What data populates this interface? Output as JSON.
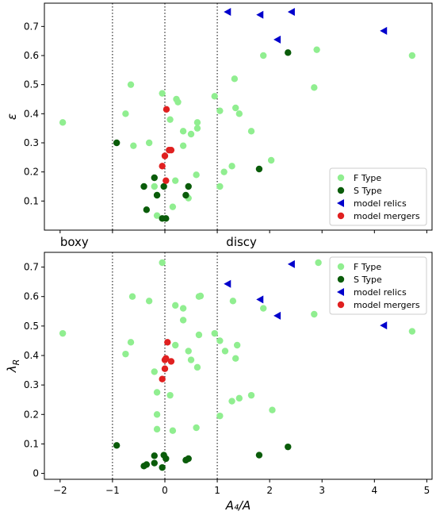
{
  "chart_data": [
    {
      "type": "scatter",
      "ylabel": "ε",
      "xlim": [
        -2.3,
        5.1
      ],
      "ylim": [
        0.0,
        0.78
      ],
      "yticks": [
        0.1,
        0.2,
        0.3,
        0.4,
        0.5,
        0.6,
        0.7
      ],
      "vlines": [
        -1,
        0,
        1
      ],
      "legend_position": "bottom-right",
      "annotations": [
        "boxy",
        "discy"
      ],
      "series": [
        {
          "name": "F Type",
          "color": "#90ee90",
          "marker": "circle",
          "points": [
            [
              -1.95,
              0.37
            ],
            [
              -0.65,
              0.5
            ],
            [
              -0.75,
              0.4
            ],
            [
              -0.6,
              0.29
            ],
            [
              -0.3,
              0.3
            ],
            [
              -0.05,
              0.47
            ],
            [
              0.1,
              0.38
            ],
            [
              0.25,
              0.44
            ],
            [
              0.22,
              0.45
            ],
            [
              0.35,
              0.34
            ],
            [
              0.5,
              0.33
            ],
            [
              0.62,
              0.35
            ],
            [
              0.62,
              0.37
            ],
            [
              0.95,
              0.46
            ],
            [
              1.05,
              0.41
            ],
            [
              0.35,
              0.29
            ],
            [
              0.2,
              0.17
            ],
            [
              0.6,
              0.19
            ],
            [
              0.45,
              0.11
            ],
            [
              0.15,
              0.08
            ],
            [
              -0.15,
              0.05
            ],
            [
              -0.2,
              0.15
            ],
            [
              -0.15,
              0.12
            ],
            [
              1.33,
              0.52
            ],
            [
              1.35,
              0.42
            ],
            [
              1.42,
              0.4
            ],
            [
              1.65,
              0.34
            ],
            [
              1.88,
              0.6
            ],
            [
              2.9,
              0.62
            ],
            [
              2.85,
              0.49
            ],
            [
              4.72,
              0.6
            ],
            [
              2.03,
              0.24
            ],
            [
              1.13,
              0.2
            ],
            [
              1.28,
              0.22
            ],
            [
              1.05,
              0.15
            ]
          ]
        },
        {
          "name": "S Type",
          "color": "#0a5c0a",
          "marker": "circle",
          "points": [
            [
              -0.92,
              0.3
            ],
            [
              -0.2,
              0.18
            ],
            [
              -0.4,
              0.15
            ],
            [
              -0.35,
              0.07
            ],
            [
              -0.15,
              0.12
            ],
            [
              -0.02,
              0.15
            ],
            [
              -0.05,
              0.04
            ],
            [
              0.02,
              0.04
            ],
            [
              0.45,
              0.15
            ],
            [
              0.4,
              0.12
            ],
            [
              1.8,
              0.21
            ],
            [
              2.35,
              0.61
            ]
          ]
        },
        {
          "name": "model relics",
          "color": "#0000cc",
          "marker": "triangle-left",
          "points": [
            [
              1.2,
              0.75
            ],
            [
              1.82,
              0.74
            ],
            [
              2.42,
              0.75
            ],
            [
              2.15,
              0.655
            ],
            [
              4.18,
              0.685
            ]
          ]
        },
        {
          "name": "model mergers",
          "color": "#e02020",
          "marker": "circle",
          "points": [
            [
              0.03,
              0.415
            ],
            [
              0.08,
              0.275
            ],
            [
              0.12,
              0.275
            ],
            [
              0.0,
              0.255
            ],
            [
              -0.05,
              0.22
            ],
            [
              0.02,
              0.17
            ]
          ]
        }
      ]
    },
    {
      "type": "scatter",
      "xlabel": "A₄/A",
      "ylabel": "λ",
      "ylabel_sub": "R",
      "xlim": [
        -2.3,
        5.1
      ],
      "ylim": [
        -0.02,
        0.75
      ],
      "xticks": [
        -2,
        -1,
        0,
        1,
        2,
        3,
        4,
        5
      ],
      "yticks": [
        0.0,
        0.1,
        0.2,
        0.3,
        0.4,
        0.5,
        0.6,
        0.7
      ],
      "vlines": [
        -1,
        0,
        1
      ],
      "legend_position": "top-right",
      "series": [
        {
          "name": "F Type",
          "color": "#90ee90",
          "marker": "circle",
          "points": [
            [
              -1.95,
              0.475
            ],
            [
              -0.62,
              0.6
            ],
            [
              -0.3,
              0.585
            ],
            [
              -0.65,
              0.445
            ],
            [
              -0.75,
              0.405
            ],
            [
              -0.05,
              0.715
            ],
            [
              0.2,
              0.57
            ],
            [
              0.35,
              0.56
            ],
            [
              0.35,
              0.52
            ],
            [
              0.65,
              0.6
            ],
            [
              0.68,
              0.602
            ],
            [
              0.65,
              0.47
            ],
            [
              0.95,
              0.475
            ],
            [
              0.2,
              0.435
            ],
            [
              0.45,
              0.415
            ],
            [
              0.5,
              0.385
            ],
            [
              0.62,
              0.36
            ],
            [
              1.05,
              0.45
            ],
            [
              1.15,
              0.415
            ],
            [
              1.35,
              0.39
            ],
            [
              -0.2,
              0.345
            ],
            [
              -0.15,
              0.275
            ],
            [
              0.1,
              0.265
            ],
            [
              -0.15,
              0.2
            ],
            [
              -0.15,
              0.15
            ],
            [
              0.15,
              0.145
            ],
            [
              0.6,
              0.155
            ],
            [
              1.05,
              0.195
            ],
            [
              1.3,
              0.585
            ],
            [
              1.38,
              0.435
            ],
            [
              1.88,
              0.56
            ],
            [
              2.93,
              0.715
            ],
            [
              2.85,
              0.54
            ],
            [
              4.72,
              0.482
            ],
            [
              1.42,
              0.255
            ],
            [
              1.28,
              0.245
            ],
            [
              1.65,
              0.265
            ],
            [
              2.05,
              0.215
            ]
          ]
        },
        {
          "name": "S Type",
          "color": "#0a5c0a",
          "marker": "circle",
          "points": [
            [
              -0.92,
              0.095
            ],
            [
              -0.02,
              0.062
            ],
            [
              0.02,
              0.05
            ],
            [
              -0.2,
              0.06
            ],
            [
              -0.4,
              0.025
            ],
            [
              -0.35,
              0.03
            ],
            [
              -0.2,
              0.035
            ],
            [
              -0.05,
              0.02
            ],
            [
              0.4,
              0.045
            ],
            [
              0.45,
              0.05
            ],
            [
              1.8,
              0.062
            ],
            [
              2.35,
              0.09
            ]
          ]
        },
        {
          "name": "model relics",
          "color": "#0000cc",
          "marker": "triangle-left",
          "points": [
            [
              2.42,
              0.71
            ],
            [
              1.2,
              0.643
            ],
            [
              1.82,
              0.59
            ],
            [
              2.15,
              0.535
            ],
            [
              4.18,
              0.502
            ]
          ]
        },
        {
          "name": "model mergers",
          "color": "#e02020",
          "marker": "circle",
          "points": [
            [
              0.05,
              0.445
            ],
            [
              0.0,
              0.385
            ],
            [
              0.02,
              0.39
            ],
            [
              0.12,
              0.38
            ],
            [
              0.0,
              0.355
            ],
            [
              -0.05,
              0.32
            ]
          ]
        }
      ]
    }
  ]
}
